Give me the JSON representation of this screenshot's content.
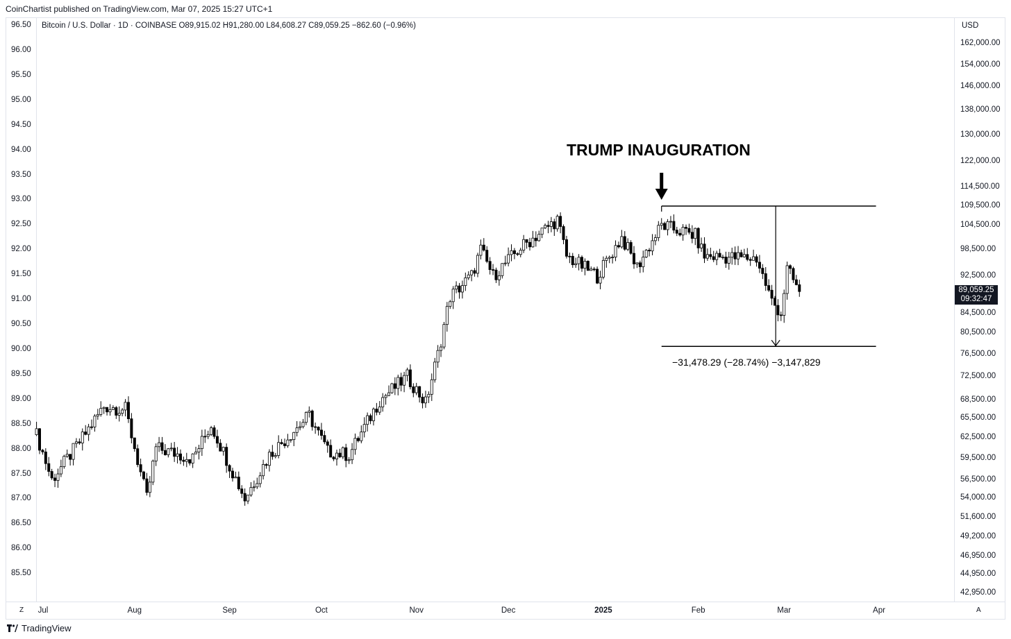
{
  "header": {
    "publisher": "CoinChartist published on TradingView.com, Mar 07, 2025 15:27 UTC+1",
    "symbol_line": "Bitcoin / U.S. Dollar · 1D · COINBASE  O89,915.02  H91,280.00  L84,608.27  C89,059.25  −862.60 (−0.96%)"
  },
  "footer": {
    "brand": "TradingView",
    "brand_icon": "tradingview-logo-icon",
    "left_corner": "Z",
    "right_corner": "A"
  },
  "chart_data": {
    "type": "candlestick",
    "title": "Bitcoin / U.S. Dollar · 1D · COINBASE",
    "currency": "USD",
    "scale": "log",
    "grid": false,
    "last_price": "89,059.25",
    "countdown": "09:32:47",
    "left_axis": {
      "ticks": [
        "96.50",
        "96.00",
        "95.50",
        "95.00",
        "94.50",
        "94.00",
        "93.50",
        "93.00",
        "92.50",
        "92.00",
        "91.50",
        "91.00",
        "90.50",
        "90.00",
        "89.50",
        "89.00",
        "88.50",
        "88.00",
        "87.50",
        "87.00",
        "86.50",
        "86.00",
        "85.50"
      ],
      "range": [
        85.35,
        96.5
      ]
    },
    "right_axis": {
      "ticks": [
        "162,000.00",
        "154,000.00",
        "146,000.00",
        "138,000.00",
        "130,000.00",
        "122,000.00",
        "114,500.00",
        "109,500.00",
        "104,500.00",
        "98,500.00",
        "92,500.00",
        "84,500.00",
        "80,500.00",
        "76,500.00",
        "72,500.00",
        "68,500.00",
        "65,500.00",
        "62,500.00",
        "59,500.00",
        "56,500.00",
        "54,000.00",
        "51,600.00",
        "49,200.00",
        "46,950.00",
        "44,950.00",
        "42,950.00"
      ],
      "range": [
        42000,
        165000
      ]
    },
    "x_axis": {
      "labels": [
        {
          "text": "Jul",
          "date": "2024-07-01",
          "bold": false
        },
        {
          "text": "Aug",
          "date": "2024-08-01",
          "bold": false
        },
        {
          "text": "Sep",
          "date": "2024-09-01",
          "bold": false
        },
        {
          "text": "Oct",
          "date": "2024-10-01",
          "bold": false
        },
        {
          "text": "Nov",
          "date": "2024-11-01",
          "bold": false
        },
        {
          "text": "Dec",
          "date": "2024-12-01",
          "bold": false
        },
        {
          "text": "2025",
          "date": "2025-01-01",
          "bold": true
        },
        {
          "text": "Feb",
          "date": "2025-02-01",
          "bold": false
        },
        {
          "text": "Mar",
          "date": "2025-03-01",
          "bold": false
        },
        {
          "text": "Apr",
          "date": "2025-04-01",
          "bold": false
        }
      ]
    },
    "anchors": [
      {
        "date": "2024-06-30",
        "price": 63000
      },
      {
        "date": "2024-07-05",
        "price": 56500
      },
      {
        "date": "2024-07-15",
        "price": 62500
      },
      {
        "date": "2024-07-22",
        "price": 67500
      },
      {
        "date": "2024-07-29",
        "price": 67000
      },
      {
        "date": "2024-08-05",
        "price": 54000
      },
      {
        "date": "2024-08-08",
        "price": 61000
      },
      {
        "date": "2024-08-20",
        "price": 59500
      },
      {
        "date": "2024-08-26",
        "price": 64500
      },
      {
        "date": "2024-09-06",
        "price": 54000
      },
      {
        "date": "2024-09-14",
        "price": 60000
      },
      {
        "date": "2024-09-27",
        "price": 66000
      },
      {
        "date": "2024-10-03",
        "price": 60500
      },
      {
        "date": "2024-10-10",
        "price": 60000
      },
      {
        "date": "2024-10-20",
        "price": 68500
      },
      {
        "date": "2024-10-29",
        "price": 72500
      },
      {
        "date": "2024-11-04",
        "price": 68000
      },
      {
        "date": "2024-11-08",
        "price": 76500
      },
      {
        "date": "2024-11-12",
        "price": 88000
      },
      {
        "date": "2024-11-19",
        "price": 92500
      },
      {
        "date": "2024-11-22",
        "price": 98500
      },
      {
        "date": "2024-11-26",
        "price": 92500
      },
      {
        "date": "2024-12-05",
        "price": 99000
      },
      {
        "date": "2024-12-17",
        "price": 106000
      },
      {
        "date": "2024-12-20",
        "price": 97000
      },
      {
        "date": "2024-12-30",
        "price": 92500
      },
      {
        "date": "2025-01-07",
        "price": 101500
      },
      {
        "date": "2025-01-12",
        "price": 94500
      },
      {
        "date": "2025-01-20",
        "price": 104500
      },
      {
        "date": "2025-01-31",
        "price": 102000
      },
      {
        "date": "2025-02-03",
        "price": 97000
      },
      {
        "date": "2025-02-20",
        "price": 96500
      },
      {
        "date": "2025-02-25",
        "price": 87000
      },
      {
        "date": "2025-02-28",
        "price": 84500
      },
      {
        "date": "2025-03-02",
        "price": 94000
      },
      {
        "date": "2025-03-06",
        "price": 89059
      }
    ],
    "annotations": {
      "title": "TRUMP INAUGURATION",
      "arrow_date": "2025-01-20",
      "measure": {
        "start_date": "2025-01-20",
        "end_date": "2025-03-31",
        "top_price": 109500,
        "bottom_price": 78000,
        "label": "−31,478.29 (−28.74%) −3,147,829"
      }
    }
  }
}
